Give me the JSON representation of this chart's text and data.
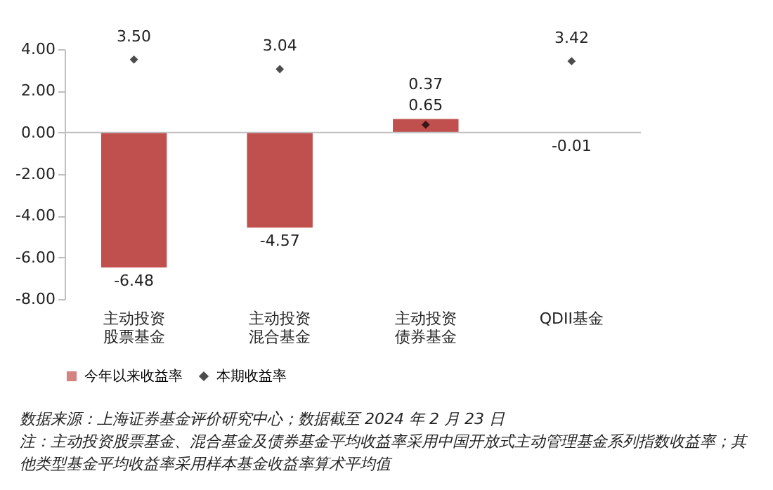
{
  "chart_data": {
    "type": "bar",
    "categories": [
      "主动投资股票基金",
      "主动投资混合基金",
      "主动投资债券基金",
      "QDII基金"
    ],
    "series": [
      {
        "name": "今年以来收益率",
        "type": "bar",
        "color": "#c0504d",
        "values": [
          -6.48,
          -4.57,
          0.65,
          -0.01
        ],
        "value_labels": [
          "-6.48",
          "-4.57",
          "0.65",
          "-0.01"
        ]
      },
      {
        "name": "本期收益率",
        "type": "scatter",
        "color": "#000000",
        "marker": "diamond",
        "values": [
          3.5,
          3.04,
          0.37,
          3.42
        ],
        "value_labels": [
          "3.50",
          "3.04",
          "0.37",
          "3.42"
        ]
      }
    ],
    "ylim": [
      -8,
      4
    ],
    "yticks": [
      {
        "value": -8,
        "label": "-8.00"
      },
      {
        "value": -6,
        "label": "-6.00"
      },
      {
        "value": -4,
        "label": "-4.00"
      },
      {
        "value": -2,
        "label": "-2.00"
      },
      {
        "value": 0,
        "label": "0.00"
      },
      {
        "value": 2,
        "label": "2.00"
      },
      {
        "value": 4,
        "label": "4.00"
      }
    ],
    "ref_lines": [
      {
        "axis": "y",
        "value": 0,
        "color": "#bfbfbf"
      }
    ],
    "grid": false,
    "legend": "bottom",
    "annotations": [
      "数据来源：上海证券基金评价研究中心；数据截至 2024 年 2 月 23 日",
      "注：主动投资股票基金、混合基金及债券基金平均收益率采用中国开放式主动管理基金系列指数收益率；其他类型基金平均收益率采用样本基金收益率算术平均值"
    ]
  }
}
